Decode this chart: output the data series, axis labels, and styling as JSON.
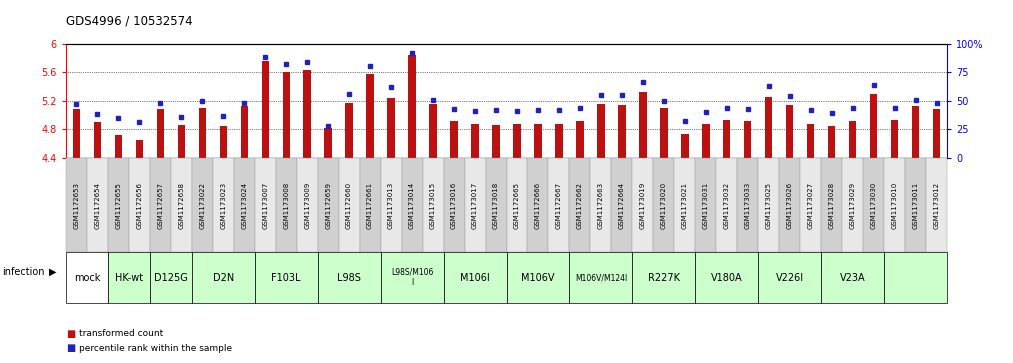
{
  "title": "GDS4996 / 10532574",
  "samples": [
    "GSM1172653",
    "GSM1172654",
    "GSM1172655",
    "GSM1172656",
    "GSM1172657",
    "GSM1172658",
    "GSM1173022",
    "GSM1173023",
    "GSM1173024",
    "GSM1173007",
    "GSM1173008",
    "GSM1173009",
    "GSM1172659",
    "GSM1172660",
    "GSM1172661",
    "GSM1173013",
    "GSM1173014",
    "GSM1173015",
    "GSM1173016",
    "GSM1173017",
    "GSM1173018",
    "GSM1172665",
    "GSM1172666",
    "GSM1172667",
    "GSM1172662",
    "GSM1172663",
    "GSM1172664",
    "GSM1173019",
    "GSM1173020",
    "GSM1173021",
    "GSM1173031",
    "GSM1173032",
    "GSM1173033",
    "GSM1173025",
    "GSM1173026",
    "GSM1173027",
    "GSM1173028",
    "GSM1173029",
    "GSM1173030",
    "GSM1173010",
    "GSM1173011",
    "GSM1173012"
  ],
  "red_values": [
    5.08,
    4.9,
    4.72,
    4.65,
    5.08,
    4.86,
    5.1,
    4.84,
    5.12,
    5.75,
    5.6,
    5.63,
    4.82,
    5.17,
    5.58,
    5.24,
    5.84,
    5.15,
    4.92,
    4.87,
    4.86,
    4.87,
    4.87,
    4.88,
    4.91,
    5.15,
    5.14,
    5.32,
    5.1,
    4.74,
    4.87,
    4.93,
    4.91,
    5.25,
    5.14,
    4.88,
    4.85,
    4.92,
    5.29,
    4.93,
    5.12,
    5.08
  ],
  "blue_values": [
    47,
    38,
    35,
    31,
    48,
    36,
    50,
    37,
    48,
    88,
    82,
    84,
    28,
    56,
    80,
    62,
    92,
    51,
    43,
    41,
    42,
    41,
    42,
    42,
    44,
    55,
    55,
    66,
    50,
    32,
    40,
    44,
    43,
    63,
    54,
    42,
    39,
    44,
    64,
    44,
    51,
    48
  ],
  "groups": [
    {
      "label": "mock",
      "start": 0,
      "end": 2,
      "color": "#ffffff"
    },
    {
      "label": "HK-wt",
      "start": 2,
      "end": 4,
      "color": "#ccffcc"
    },
    {
      "label": "D125G",
      "start": 4,
      "end": 6,
      "color": "#ccffcc"
    },
    {
      "label": "D2N",
      "start": 6,
      "end": 9,
      "color": "#ccffcc"
    },
    {
      "label": "F103L",
      "start": 9,
      "end": 12,
      "color": "#ccffcc"
    },
    {
      "label": "L98S",
      "start": 12,
      "end": 15,
      "color": "#ccffcc"
    },
    {
      "label": "L98S/M106\nI",
      "start": 15,
      "end": 18,
      "color": "#ccffcc"
    },
    {
      "label": "M106I",
      "start": 18,
      "end": 21,
      "color": "#ccffcc"
    },
    {
      "label": "M106V",
      "start": 21,
      "end": 24,
      "color": "#ccffcc"
    },
    {
      "label": "M106V/M124I",
      "start": 24,
      "end": 27,
      "color": "#ccffcc"
    },
    {
      "label": "R227K",
      "start": 27,
      "end": 30,
      "color": "#ccffcc"
    },
    {
      "label": "V180A",
      "start": 30,
      "end": 33,
      "color": "#ccffcc"
    },
    {
      "label": "V226I",
      "start": 33,
      "end": 36,
      "color": "#ccffcc"
    },
    {
      "label": "V23A",
      "start": 36,
      "end": 39,
      "color": "#ccffcc"
    },
    {
      "label": "",
      "start": 39,
      "end": 42,
      "color": "#ccffcc"
    }
  ],
  "ymin": 4.4,
  "ymax": 6.0,
  "yticks": [
    4.4,
    4.8,
    5.2,
    5.6,
    6.0
  ],
  "ytick_labels": [
    "4.4",
    "4.8",
    "5.2",
    "5.6",
    "6"
  ],
  "right_yticks": [
    0,
    25,
    50,
    75,
    100
  ],
  "right_ytick_labels": [
    "0",
    "25",
    "50",
    "75",
    "100%"
  ],
  "bar_color": "#bb1111",
  "blue_color": "#2222bb",
  "dotted_lines": [
    4.8,
    5.2,
    5.6
  ]
}
